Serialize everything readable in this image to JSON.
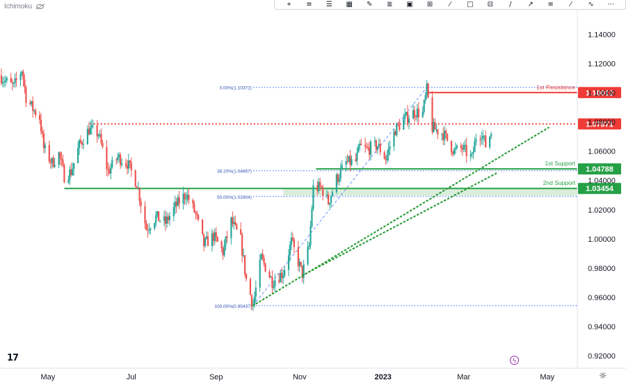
{
  "header": {
    "indicator_name": "Ichimoku",
    "toolbar_icons": [
      "cursor-icon",
      "horizontal-line-icon",
      "text-icon",
      "grid-icon",
      "pencil-icon",
      "fib-icon",
      "lock-icon",
      "ruler-icon",
      "brush-icon",
      "rectangle-icon",
      "vertical-line-icon",
      "path-icon",
      "arrow-icon",
      "parallel-icon",
      "trend-icon",
      "zoom-icon",
      "more-icon"
    ]
  },
  "branding": {
    "logo_text": "17"
  },
  "colors": {
    "up": "#26a69a",
    "down": "#ef5350",
    "resistance": "#ef3b36",
    "support": "#26a046",
    "fib": "#2962ff",
    "trend": "#2b9d38",
    "zone": "#cfe7cf"
  },
  "chart_data": {
    "type": "candlestick",
    "title": "",
    "xlabel": "",
    "ylabel": "",
    "ylim": [
      0.9115,
      1.1635
    ],
    "xlim": [
      "2022-03-27",
      "2023-05-23"
    ],
    "x_ticks": [
      {
        "date": "2022-05-01",
        "label": "May"
      },
      {
        "date": "2022-07-01",
        "label": "Jul"
      },
      {
        "date": "2022-09-01",
        "label": "Sep"
      },
      {
        "date": "2022-11-01",
        "label": "Nov"
      },
      {
        "date": "2023-01-01",
        "label": "2023"
      },
      {
        "date": "2023-03-01",
        "label": "Mar"
      },
      {
        "date": "2023-05-01",
        "label": "May"
      }
    ],
    "y_ticks": [
      "1.14000",
      "1.12000",
      "1.10000",
      "1.08000",
      "1.06000",
      "1.04000",
      "1.02000",
      "1.00000",
      "0.98000",
      "0.96000",
      "0.94000",
      "0.92000"
    ],
    "price_path": [
      {
        "date": "2022-03-27",
        "price": 1.112
      },
      {
        "date": "2022-03-31",
        "price": 1.108
      },
      {
        "date": "2022-04-06",
        "price": 1.104
      },
      {
        "date": "2022-04-12",
        "price": 1.116
      },
      {
        "date": "2022-04-15",
        "price": 1.097
      },
      {
        "date": "2022-04-20",
        "price": 1.089
      },
      {
        "date": "2022-04-25",
        "price": 1.083
      },
      {
        "date": "2022-04-28",
        "price": 1.062
      },
      {
        "date": "2022-05-04",
        "price": 1.052
      },
      {
        "date": "2022-05-09",
        "price": 1.058
      },
      {
        "date": "2022-05-13",
        "price": 1.043
      },
      {
        "date": "2022-05-18",
        "price": 1.046
      },
      {
        "date": "2022-05-24",
        "price": 1.064
      },
      {
        "date": "2022-05-31",
        "price": 1.075
      },
      {
        "date": "2022-06-07",
        "price": 1.072
      },
      {
        "date": "2022-06-14",
        "price": 1.046
      },
      {
        "date": "2022-06-21",
        "price": 1.056
      },
      {
        "date": "2022-06-28",
        "price": 1.052
      },
      {
        "date": "2022-07-05",
        "price": 1.038
      },
      {
        "date": "2022-07-12",
        "price": 1.007
      },
      {
        "date": "2022-07-19",
        "price": 1.015
      },
      {
        "date": "2022-07-26",
        "price": 1.011
      },
      {
        "date": "2022-08-02",
        "price": 1.022
      },
      {
        "date": "2022-08-10",
        "price": 1.031
      },
      {
        "date": "2022-08-17",
        "price": 1.017
      },
      {
        "date": "2022-08-23",
        "price": 0.996
      },
      {
        "date": "2022-08-30",
        "price": 1.002
      },
      {
        "date": "2022-09-06",
        "price": 0.991
      },
      {
        "date": "2022-09-12",
        "price": 1.012
      },
      {
        "date": "2022-09-19",
        "price": 0.999
      },
      {
        "date": "2022-09-23",
        "price": 0.972
      },
      {
        "date": "2022-09-28",
        "price": 0.955
      },
      {
        "date": "2022-10-04",
        "price": 0.987
      },
      {
        "date": "2022-10-12",
        "price": 0.971
      },
      {
        "date": "2022-10-20",
        "price": 0.977
      },
      {
        "date": "2022-10-26",
        "price": 0.998
      },
      {
        "date": "2022-11-03",
        "price": 0.976
      },
      {
        "date": "2022-11-08",
        "price": 0.995
      },
      {
        "date": "2022-11-11",
        "price": 1.035
      },
      {
        "date": "2022-11-17",
        "price": 1.035
      },
      {
        "date": "2022-11-22",
        "price": 1.025
      },
      {
        "date": "2022-11-28",
        "price": 1.041
      },
      {
        "date": "2022-12-05",
        "price": 1.052
      },
      {
        "date": "2022-12-12",
        "price": 1.053
      },
      {
        "date": "2022-12-15",
        "price": 1.063
      },
      {
        "date": "2022-12-20",
        "price": 1.061
      },
      {
        "date": "2022-12-28",
        "price": 1.064
      },
      {
        "date": "2023-01-03",
        "price": 1.055
      },
      {
        "date": "2023-01-10",
        "price": 1.075
      },
      {
        "date": "2023-01-17",
        "price": 1.082
      },
      {
        "date": "2023-01-24",
        "price": 1.087
      },
      {
        "date": "2023-01-30",
        "price": 1.086
      },
      {
        "date": "2023-02-02",
        "price": 1.102
      },
      {
        "date": "2023-02-06",
        "price": 1.076
      },
      {
        "date": "2023-02-14",
        "price": 1.072
      },
      {
        "date": "2023-02-22",
        "price": 1.06
      },
      {
        "date": "2023-02-28",
        "price": 1.062
      },
      {
        "date": "2023-03-07",
        "price": 1.055
      },
      {
        "date": "2023-03-10",
        "price": 1.07
      },
      {
        "date": "2023-03-14",
        "price": 1.073
      },
      {
        "date": "2023-03-17",
        "price": 1.064
      },
      {
        "date": "2023-03-21",
        "price": 1.073
      }
    ],
    "fibonacci": [
      {
        "label": "0.00%(1.10372)",
        "price": 1.10372
      },
      {
        "label": "38.20%(1.04667)",
        "price": 1.04667
      },
      {
        "label": "50.00%(1.02904)",
        "price": 1.02904
      },
      {
        "label": "100.00%(0.95437)",
        "price": 0.95437
      }
    ],
    "fib_anchor": {
      "from": {
        "date": "2022-09-28",
        "price": 0.95437
      },
      "to": {
        "date": "2023-02-02",
        "price": 1.10372
      }
    },
    "levels": [
      {
        "name": "1st Resistance",
        "price": 1.10012,
        "label": "1.10012",
        "kind": "resistance",
        "line_style": "solid",
        "start": "2023-02-03"
      },
      {
        "name": "",
        "price": 1.07871,
        "label": "1.07871",
        "kind": "resistance",
        "line_style": "dotted",
        "start": "2022-06-01"
      },
      {
        "name": "1st Support",
        "price": 1.04788,
        "label": "1.04788",
        "kind": "support",
        "line_style": "solid",
        "start": "2022-11-13"
      },
      {
        "name": "2nd Support",
        "price": 1.03454,
        "label": "1.03454",
        "kind": "support",
        "line_style": "solid",
        "start": "2022-05-13"
      }
    ],
    "zone": {
      "top": 1.03454,
      "bottom": 1.0295,
      "start": "2022-10-20"
    },
    "trendlines": [
      {
        "from": {
          "date": "2022-09-28",
          "price": 0.9544
        },
        "to": {
          "date": "2023-05-02",
          "price": 1.0762
        }
      },
      {
        "from": {
          "date": "2022-11-03",
          "price": 0.975
        },
        "to": {
          "date": "2023-03-25",
          "price": 1.045
        }
      }
    ]
  }
}
